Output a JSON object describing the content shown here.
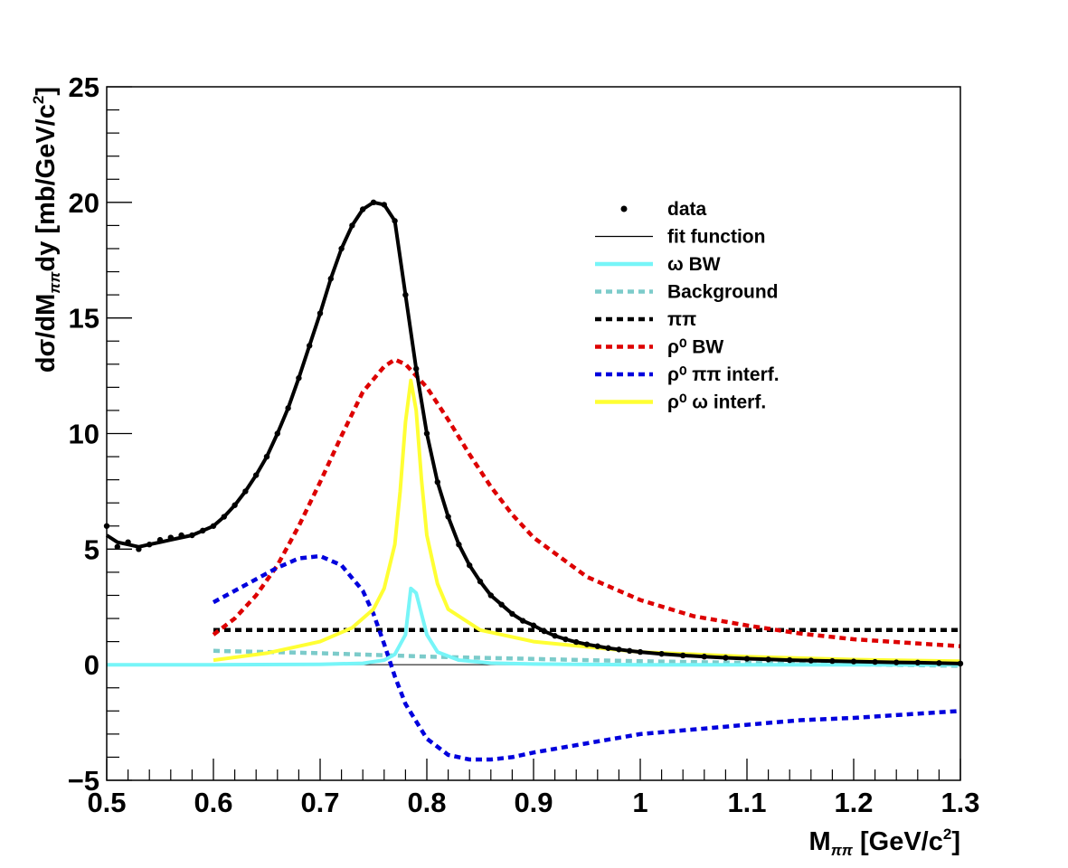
{
  "chart_data": {
    "type": "line",
    "xlabel": {
      "main": "M",
      "sub": "ππ",
      "unit_pre": " [GeV/c",
      "unit_sup": "2",
      "unit_post": "]"
    },
    "ylabel": {
      "main": "dσ/dM",
      "sub": "ππ",
      "mid": "dy [mb/GeV/c",
      "sup": "2",
      "post": "]"
    },
    "xlim": [
      0.5,
      1.3
    ],
    "ylim": [
      -5,
      25
    ],
    "x_ticks": [
      0.5,
      0.6,
      0.7,
      0.8,
      0.9,
      1.0,
      1.1,
      1.2,
      1.3
    ],
    "x_tick_labels": [
      "0.5",
      "0.6",
      "0.7",
      "0.8",
      "0.9",
      "1",
      "1.1",
      "1.2",
      "1.3"
    ],
    "y_ticks": [
      -5,
      0,
      5,
      10,
      15,
      20,
      25
    ],
    "y_tick_labels": [
      "−5",
      "0",
      "5",
      "10",
      "15",
      "20",
      "25"
    ],
    "grid": false,
    "legend_position": "top-right",
    "series": [
      {
        "name": "data",
        "style": "points",
        "color": "#000000",
        "x": [
          0.5,
          0.51,
          0.52,
          0.53,
          0.54,
          0.55,
          0.56,
          0.57,
          0.58,
          0.59,
          0.6,
          0.61,
          0.62,
          0.63,
          0.64,
          0.65,
          0.66,
          0.67,
          0.68,
          0.69,
          0.7,
          0.71,
          0.72,
          0.73,
          0.74,
          0.75,
          0.76,
          0.77,
          0.78,
          0.79,
          0.8,
          0.81,
          0.82,
          0.83,
          0.84,
          0.85,
          0.86,
          0.87,
          0.88,
          0.89,
          0.9,
          0.91,
          0.92,
          0.93,
          0.94,
          0.95,
          0.96,
          0.97,
          0.98,
          0.99,
          1.0,
          1.02,
          1.04,
          1.06,
          1.08,
          1.1,
          1.12,
          1.14,
          1.16,
          1.18,
          1.2,
          1.22,
          1.24,
          1.26,
          1.28,
          1.3
        ],
        "y": [
          6.0,
          5.1,
          5.3,
          5.0,
          5.2,
          5.4,
          5.5,
          5.6,
          5.6,
          5.8,
          6.0,
          6.4,
          6.9,
          7.5,
          8.2,
          9.0,
          10.0,
          11.1,
          12.4,
          13.8,
          15.2,
          16.7,
          18.0,
          19.0,
          19.7,
          20.0,
          19.9,
          19.2,
          16.0,
          12.8,
          10.0,
          7.9,
          6.4,
          5.2,
          4.3,
          3.6,
          3.0,
          2.6,
          2.2,
          1.9,
          1.7,
          1.45,
          1.25,
          1.1,
          0.98,
          0.88,
          0.8,
          0.72,
          0.66,
          0.6,
          0.55,
          0.47,
          0.4,
          0.35,
          0.3,
          0.26,
          0.23,
          0.2,
          0.18,
          0.16,
          0.14,
          0.12,
          0.1,
          0.09,
          0.07,
          0.05
        ]
      },
      {
        "name": "fit function",
        "style": "solid",
        "color": "#000000",
        "x": [
          0.5,
          0.51,
          0.52,
          0.53,
          0.54,
          0.55,
          0.56,
          0.57,
          0.58,
          0.59,
          0.6,
          0.61,
          0.62,
          0.63,
          0.64,
          0.65,
          0.66,
          0.67,
          0.68,
          0.69,
          0.7,
          0.71,
          0.72,
          0.73,
          0.74,
          0.75,
          0.76,
          0.77,
          0.78,
          0.79,
          0.8,
          0.81,
          0.82,
          0.83,
          0.84,
          0.85,
          0.86,
          0.87,
          0.88,
          0.89,
          0.9,
          0.91,
          0.92,
          0.93,
          0.94,
          0.95,
          0.96,
          0.97,
          0.98,
          0.99,
          1.0,
          1.02,
          1.04,
          1.06,
          1.08,
          1.1,
          1.12,
          1.14,
          1.16,
          1.18,
          1.2,
          1.22,
          1.24,
          1.26,
          1.28,
          1.3
        ],
        "y": [
          5.6,
          5.3,
          5.2,
          5.1,
          5.2,
          5.3,
          5.4,
          5.5,
          5.6,
          5.8,
          6.0,
          6.4,
          6.9,
          7.5,
          8.2,
          9.0,
          10.0,
          11.1,
          12.4,
          13.8,
          15.2,
          16.7,
          18.0,
          19.0,
          19.7,
          20.0,
          19.9,
          19.2,
          16.0,
          12.8,
          10.0,
          7.9,
          6.4,
          5.2,
          4.3,
          3.6,
          3.0,
          2.6,
          2.2,
          1.9,
          1.7,
          1.45,
          1.25,
          1.1,
          0.98,
          0.88,
          0.8,
          0.72,
          0.66,
          0.6,
          0.55,
          0.47,
          0.4,
          0.35,
          0.3,
          0.26,
          0.23,
          0.2,
          0.18,
          0.16,
          0.14,
          0.12,
          0.1,
          0.09,
          0.07,
          0.05
        ]
      },
      {
        "name": "ω BW",
        "style": "solid",
        "color": "#77f5f8",
        "x": [
          0.5,
          0.6,
          0.7,
          0.74,
          0.76,
          0.77,
          0.78,
          0.785,
          0.79,
          0.795,
          0.8,
          0.81,
          0.83,
          0.86,
          0.9,
          1.0,
          1.1,
          1.2,
          1.3
        ],
        "y": [
          0.0,
          0.0,
          0.02,
          0.06,
          0.2,
          0.45,
          1.3,
          3.3,
          3.1,
          2.2,
          1.3,
          0.55,
          0.2,
          0.07,
          0.03,
          0.0,
          0.0,
          0.0,
          0.0
        ]
      },
      {
        "name": "Background",
        "style": "dotted",
        "color": "#7ccbca",
        "x": [
          0.6,
          0.7,
          0.8,
          0.9,
          1.0,
          1.1,
          1.2,
          1.3
        ],
        "y": [
          0.6,
          0.5,
          0.35,
          0.25,
          0.15,
          0.08,
          0.02,
          -0.05
        ]
      },
      {
        "name": "ππ",
        "style": "dotted",
        "color": "#000000",
        "x": [
          0.6,
          1.3
        ],
        "y": [
          1.5,
          1.5
        ]
      },
      {
        "name": "ρ⁰ BW",
        "style": "dotted",
        "color": "#dd0000",
        "x": [
          0.6,
          0.62,
          0.64,
          0.66,
          0.68,
          0.7,
          0.72,
          0.74,
          0.76,
          0.77,
          0.78,
          0.8,
          0.82,
          0.84,
          0.86,
          0.88,
          0.9,
          0.95,
          1.0,
          1.05,
          1.1,
          1.15,
          1.2,
          1.25,
          1.3
        ],
        "y": [
          1.3,
          2.0,
          3.0,
          4.3,
          6.0,
          7.9,
          9.9,
          11.8,
          12.9,
          13.2,
          13.0,
          12.0,
          10.6,
          9.1,
          7.7,
          6.5,
          5.5,
          3.8,
          2.8,
          2.1,
          1.7,
          1.35,
          1.1,
          0.95,
          0.8
        ]
      },
      {
        "name": "ρ⁰  ππ interf.",
        "style": "dotted",
        "color": "#0000dd",
        "x": [
          0.6,
          0.62,
          0.64,
          0.66,
          0.68,
          0.7,
          0.72,
          0.74,
          0.75,
          0.76,
          0.77,
          0.78,
          0.8,
          0.82,
          0.84,
          0.86,
          0.88,
          0.9,
          0.95,
          1.0,
          1.05,
          1.1,
          1.15,
          1.2,
          1.25,
          1.3
        ],
        "y": [
          2.7,
          3.2,
          3.7,
          4.2,
          4.6,
          4.7,
          4.3,
          3.2,
          2.2,
          0.9,
          -0.5,
          -1.7,
          -3.2,
          -3.9,
          -4.1,
          -4.1,
          -4.0,
          -3.8,
          -3.4,
          -3.0,
          -2.8,
          -2.6,
          -2.4,
          -2.3,
          -2.15,
          -2.0
        ]
      },
      {
        "name": "ρ⁰  ω interf.",
        "style": "solid",
        "color": "#ffff33",
        "x": [
          0.6,
          0.65,
          0.7,
          0.73,
          0.75,
          0.76,
          0.77,
          0.775,
          0.78,
          0.785,
          0.79,
          0.795,
          0.8,
          0.81,
          0.82,
          0.85,
          0.9,
          1.0,
          1.1,
          1.2,
          1.3
        ],
        "y": [
          0.2,
          0.5,
          1.0,
          1.6,
          2.4,
          3.3,
          5.2,
          7.5,
          10.5,
          12.3,
          11.0,
          8.0,
          5.6,
          3.5,
          2.4,
          1.5,
          1.0,
          0.55,
          0.35,
          0.22,
          0.15
        ]
      }
    ]
  },
  "legend": {
    "entries": [
      {
        "label": "data",
        "style": "point",
        "color": "#000000"
      },
      {
        "label": "fit function",
        "style": "thin",
        "color": "#000000"
      },
      {
        "label": "ω BW",
        "style": "solid",
        "color": "#77f5f8"
      },
      {
        "label": "Background",
        "style": "dotted",
        "color": "#7ccbca"
      },
      {
        "label": "ππ",
        "style": "dotted",
        "color": "#000000"
      },
      {
        "label": "ρ⁰ BW",
        "style": "dotted",
        "color": "#dd0000"
      },
      {
        "label": "ρ⁰  ππ interf.",
        "style": "dotted",
        "color": "#0000dd"
      },
      {
        "label": "ρ⁰  ω interf.",
        "style": "solid",
        "color": "#ffff33"
      }
    ]
  }
}
